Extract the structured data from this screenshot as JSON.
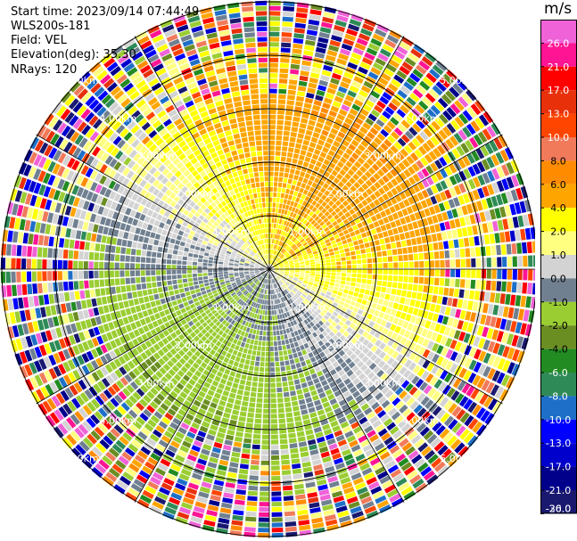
{
  "header": {
    "start_time": "Start time: 2023/09/14 07:44:49",
    "instrument": "WLS200s-181",
    "field": "Field: VEL",
    "elevation": "Elevation(deg): 35.30",
    "nrays": "NRays: 120"
  },
  "chart_data": {
    "type": "heatmap",
    "subtype": "ppi-polar",
    "field": "VEL",
    "nrays": 120,
    "range_rings_km": [
      1,
      2,
      3,
      4,
      5
    ],
    "ring_label_format": "{r}.00km",
    "colorbar": {
      "unit": "m/s",
      "ticks": [
        26.0,
        21.0,
        17.0,
        13.0,
        10.0,
        8.0,
        6.0,
        4.0,
        2.0,
        1.0,
        0.0,
        -1.0,
        -2.0,
        -4.0,
        -6.0,
        -8.0,
        -10.0,
        -13.0,
        -17.0,
        -21.0,
        -26.0,
        -30.0
      ],
      "tick_labels": [
        "26.0",
        "21.0",
        "17.0",
        "13.0",
        "10.0",
        "8.0",
        "6.0",
        "4.0",
        "2.0",
        "1.0",
        "0.0",
        "-1.0",
        "-2.0",
        "-4.0",
        "-6.0",
        "-8.0",
        "-10.0",
        "-13.0",
        "-17.0",
        "-21.0",
        "-26.0",
        "-30.0"
      ],
      "colors": [
        "#f062d8",
        "#ff1493",
        "#ff0000",
        "#e8300a",
        "#ff4500",
        "#f07a5a",
        "#ff8c00",
        "#ffa500",
        "#ffff00",
        "#ffff80",
        "#d3d3d3",
        "#708090",
        "#9acd32",
        "#6b8e23",
        "#228b22",
        "#2e8b57",
        "#1e6fc8",
        "#0000ff",
        "#0000cd",
        "#00008b",
        "#191970"
      ]
    }
  }
}
